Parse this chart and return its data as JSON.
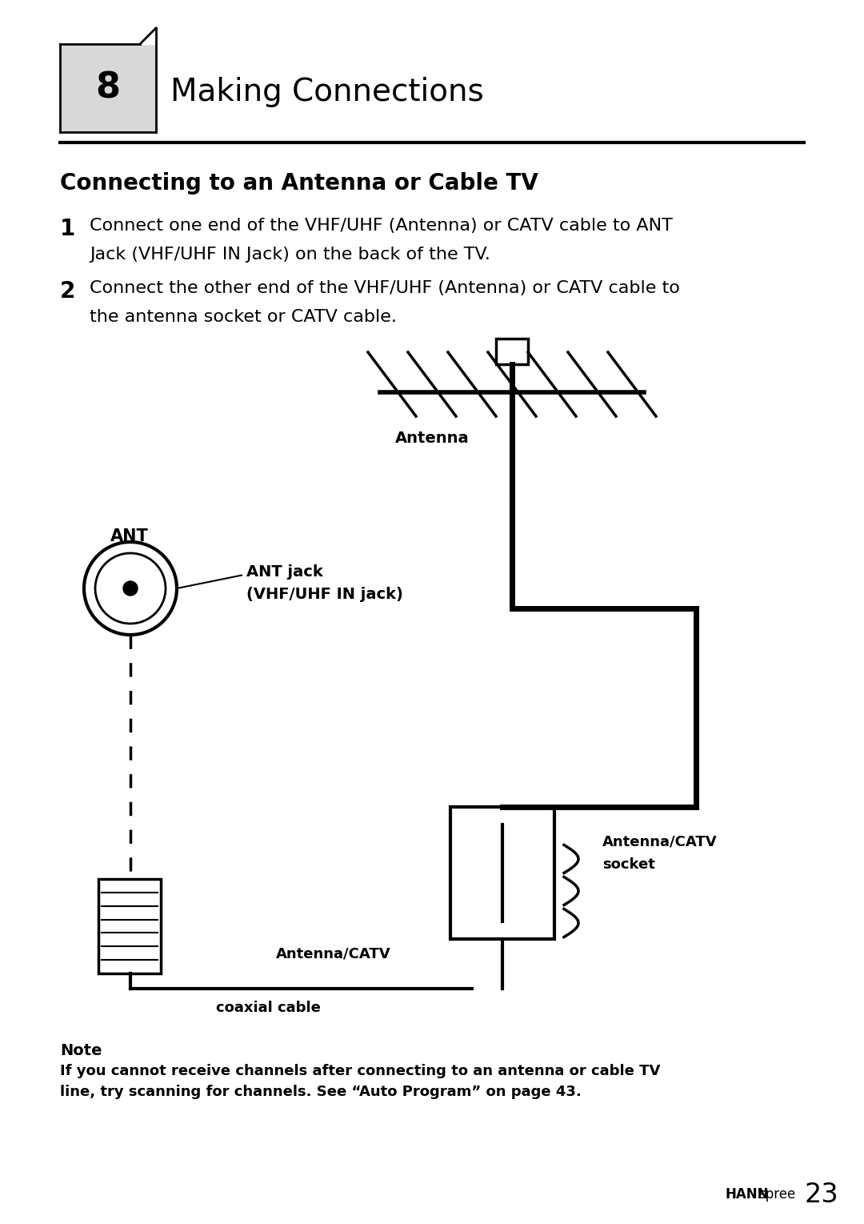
{
  "bg_color": "#ffffff",
  "chapter_num": "8",
  "chapter_title": "Making Connections",
  "section_title": "Connecting to an Antenna or Cable TV",
  "step1_num": "1",
  "step1_line1": "Connect one end of the VHF/UHF (Antenna) or CATV cable to ANT",
  "step1_line2": "Jack (VHF/UHF IN Jack) on the back of the TV.",
  "step2_num": "2",
  "step2_line1": "Connect the other end of the VHF/UHF (Antenna) or CATV cable to",
  "step2_line2": "the antenna socket or CATV cable.",
  "note_bold": "Note",
  "note_line1": "If you cannot receive channels after connecting to an antenna or cable TV",
  "note_line2": "line, try scanning for channels. See “Auto Program” on page 43.",
  "label_antenna": "Antenna",
  "label_ant": "ANT",
  "label_ant_jack1": "ANT jack",
  "label_ant_jack2": "(VHF/UHF IN jack)",
  "label_antenna_catv_socket1": "Antenna/CATV",
  "label_antenna_catv_socket2": "socket",
  "label_antenna_catv": "Antenna/CATV",
  "label_coaxial": "coaxial cable",
  "brand_hann": "HANN",
  "brand_spree": "spree",
  "page_num": "23"
}
